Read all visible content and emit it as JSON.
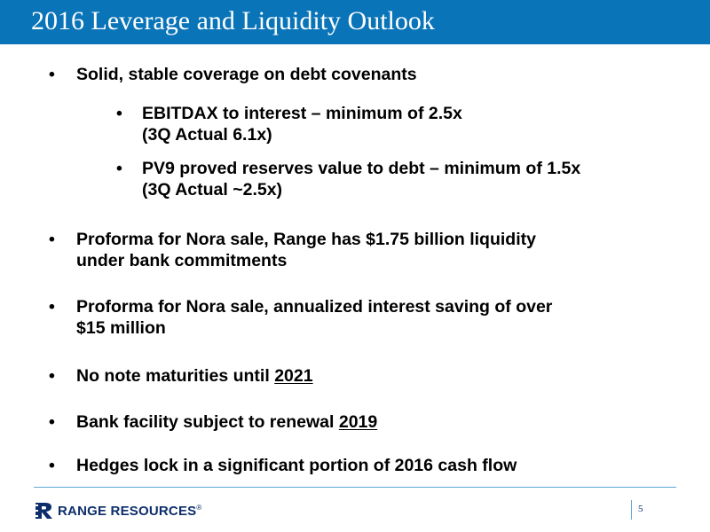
{
  "slide": {
    "title": "2016 Leverage and Liquidity Outlook",
    "page_number": "5"
  },
  "bullets": [
    {
      "marker": "•",
      "text": "Solid, stable coverage on debt covenants"
    },
    {
      "marker": "•",
      "line1": "EBITDAX to interest – minimum of 2.5x",
      "line2": "(3Q Actual 6.1x)"
    },
    {
      "marker": "•",
      "line1": "PV9 proved reserves value to debt – minimum of 1.5x",
      "line2": "(3Q Actual ~2.5x)"
    },
    {
      "marker": "•",
      "line1": "Proforma for Nora sale, Range has $1.75 billion liquidity",
      "line2": "under bank commitments"
    },
    {
      "marker": "•",
      "line1": "Proforma for Nora sale, annualized interest saving of over",
      "line2": "$15 million"
    },
    {
      "marker": "•",
      "text": "No note maturities until ",
      "emphasis": "2021"
    },
    {
      "marker": "•",
      "text": "Bank facility subject to renewal ",
      "emphasis": "2019"
    },
    {
      "marker": "•",
      "text": "Hedges lock in a significant portion of 2016 cash flow"
    }
  ],
  "footer": {
    "logo_text": "RANGE RESOURCES",
    "logo_trademark": "®",
    "logo_icon": "range-resources-logo-icon"
  },
  "colors": {
    "header_bg": "#0a74b8",
    "footer_line": "#5fa8d8",
    "brand_navy": "#0d2d6b"
  }
}
